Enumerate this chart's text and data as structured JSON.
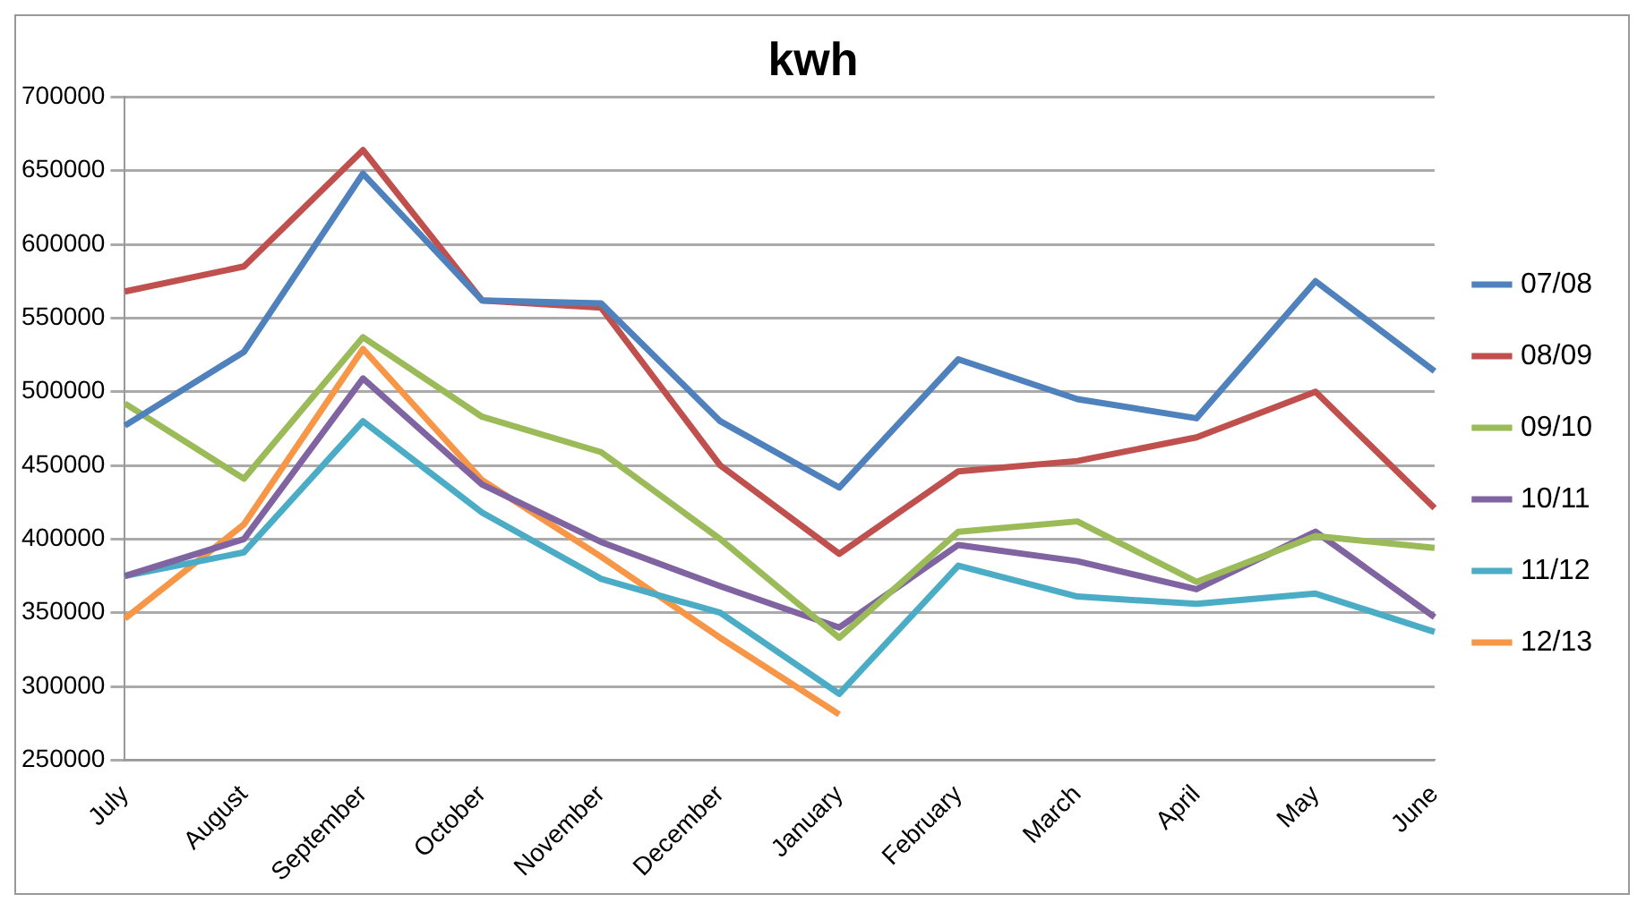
{
  "chart_data": {
    "type": "line",
    "title": "kwh",
    "categories": [
      "July",
      "August",
      "September",
      "October",
      "November",
      "December",
      "January",
      "February",
      "March",
      "April",
      "May",
      "June"
    ],
    "series": [
      {
        "name": "07/08",
        "color": "#4f81bd",
        "values": [
          477000,
          527000,
          648000,
          562000,
          560000,
          480000,
          435000,
          522000,
          495000,
          482000,
          575000,
          514000
        ]
      },
      {
        "name": "08/09",
        "color": "#c0504d",
        "values": [
          568000,
          585000,
          664000,
          562000,
          557000,
          450000,
          390000,
          446000,
          453000,
          469000,
          500000,
          421000
        ]
      },
      {
        "name": "09/10",
        "color": "#9bbb59",
        "values": [
          492000,
          441000,
          537000,
          483000,
          459000,
          400000,
          333000,
          405000,
          412000,
          371000,
          402000,
          394000
        ]
      },
      {
        "name": "10/11",
        "color": "#8064a2",
        "values": [
          375000,
          400000,
          509000,
          437000,
          398000,
          368000,
          340000,
          396000,
          385000,
          366000,
          405000,
          347000
        ]
      },
      {
        "name": "11/12",
        "color": "#4bacc6",
        "values": [
          375000,
          391000,
          480000,
          418000,
          373000,
          350000,
          295000,
          382000,
          361000,
          356000,
          363000,
          337000
        ]
      },
      {
        "name": "12/13",
        "color": "#f79646",
        "values": [
          346000,
          410000,
          529000,
          440000,
          388000,
          333000,
          281000,
          null,
          null,
          null,
          null,
          null
        ]
      }
    ],
    "ylim": [
      250000,
      700000
    ],
    "yticks": [
      250000,
      300000,
      350000,
      400000,
      450000,
      500000,
      550000,
      600000,
      650000,
      700000
    ],
    "grid": "y",
    "legend": "right",
    "marker": "none",
    "line_style": "solid"
  }
}
